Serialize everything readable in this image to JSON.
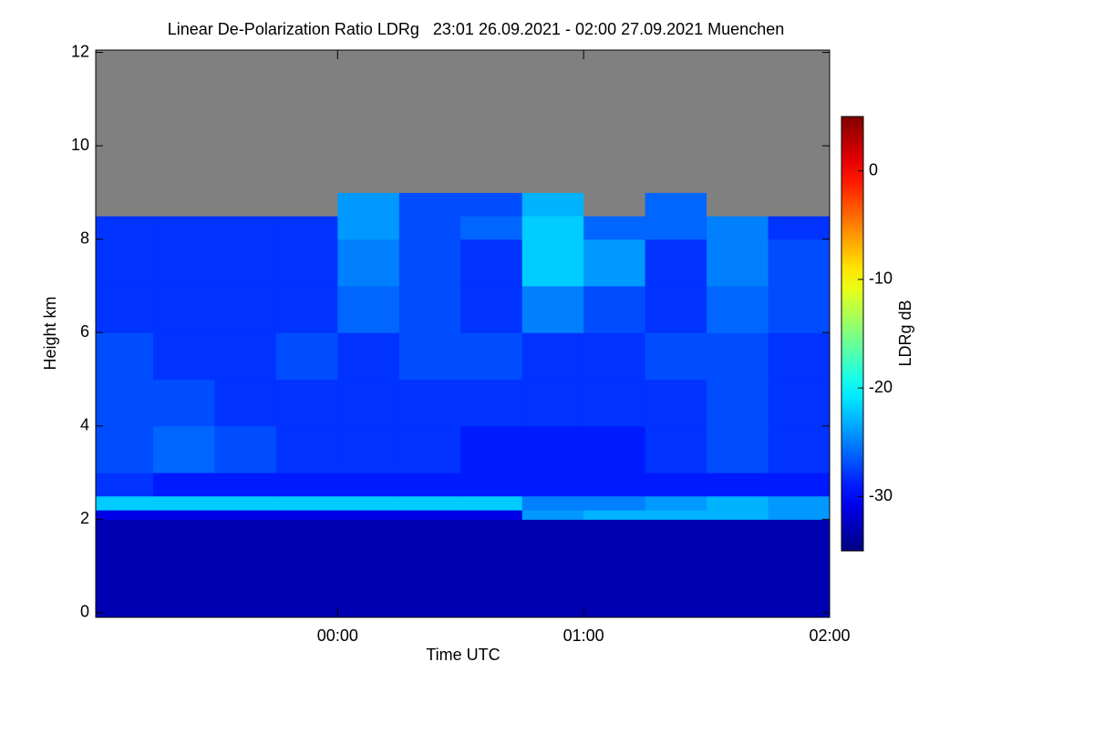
{
  "chart_data": {
    "type": "heatmap",
    "title": "Linear De-Polarization Ratio LDRg   23:01 26.09.2021 - 02:00 27.09.2021 Muenchen",
    "xlabel": "Time UTC",
    "ylabel": "Height km",
    "xlim": [
      23.0167,
      26.0
    ],
    "xticks": [
      {
        "value": 24,
        "label": "00:00"
      },
      {
        "value": 25,
        "label": "01:00"
      },
      {
        "value": 26,
        "label": "02:00"
      }
    ],
    "ylim": [
      -0.1,
      12.05
    ],
    "yticks": [
      0,
      2,
      4,
      6,
      8,
      10,
      12
    ],
    "x_edges": [
      23.0167,
      23.25,
      23.5,
      23.75,
      24,
      24.25,
      24.5,
      24.75,
      25,
      25.25,
      25.5,
      25.75,
      26
    ],
    "y_edges": [
      -0.1,
      2.0,
      2.2,
      2.5,
      3,
      4,
      5,
      6,
      7,
      8,
      8.5,
      9,
      12.05
    ],
    "z": [
      [
        -33,
        -33,
        -33,
        -33,
        -33,
        -33,
        -33,
        -33,
        -33,
        -33,
        -33,
        -33
      ],
      [
        -31,
        -31,
        -31,
        -31,
        -31,
        -31,
        -31,
        -24,
        -23,
        -23,
        -23,
        -24
      ],
      [
        -22,
        -22,
        -22,
        -22,
        -22,
        -22,
        -22,
        -25,
        -25,
        -24,
        -23,
        -24
      ],
      [
        -28,
        -29,
        -29,
        -29,
        -29,
        -29,
        -29,
        -29,
        -29,
        -29,
        -29,
        -29
      ],
      [
        -27,
        -26,
        -27,
        -28,
        -28,
        -28,
        -29,
        -29,
        -29,
        -28,
        -27,
        -28
      ],
      [
        -27,
        -27,
        -28,
        -28,
        -28,
        -28,
        -28,
        -28,
        -28,
        -28,
        -27,
        -28
      ],
      [
        -27,
        -28,
        -28,
        -27,
        -28,
        -27,
        -27,
        -28,
        -28,
        -27,
        -27,
        -28
      ],
      [
        -28,
        -28,
        -28,
        -28,
        -26,
        -27,
        -28,
        -25,
        -27,
        -28,
        -26,
        -27
      ],
      [
        -28,
        -28,
        -28,
        -28,
        -25,
        -27,
        -28,
        -22,
        -24,
        -28,
        -25,
        -27
      ],
      [
        -28,
        -28,
        -28,
        -28,
        -24,
        -27,
        -26,
        -22,
        -26,
        -26,
        -25,
        -28
      ],
      [
        null,
        null,
        null,
        null,
        -24,
        -27,
        -27,
        -23,
        null,
        -26,
        null,
        null
      ],
      [
        null,
        null,
        null,
        null,
        null,
        null,
        null,
        null,
        null,
        null,
        null,
        null
      ]
    ],
    "nodata_color": "#808080",
    "colorbar": {
      "label": "LDRg dB",
      "lim": [
        -35,
        5
      ],
      "ticks": [
        -30,
        -20,
        -10,
        0
      ],
      "colormap": "jet"
    }
  }
}
